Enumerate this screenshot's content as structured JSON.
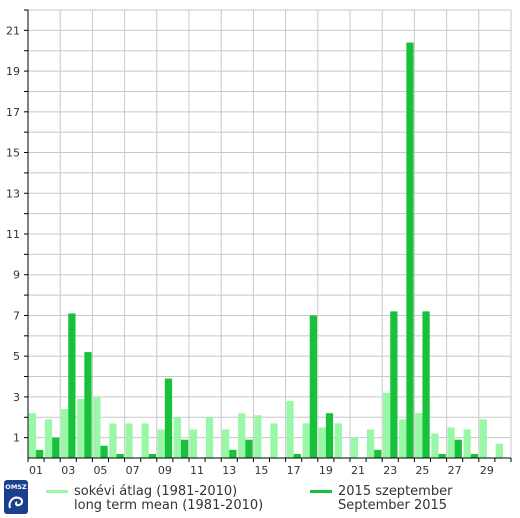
{
  "logo": {
    "text": "OMSZ",
    "color": "#1a3f8f"
  },
  "legend": {
    "mean": {
      "line1": "sokévi átlag (1981-2010)",
      "line2": "long term mean (1981-2010)",
      "color": "#99f7a8"
    },
    "current": {
      "line1": "2015 szeptember",
      "line2": "September 2015",
      "color": "#19c03a"
    }
  },
  "chart_data": {
    "type": "bar",
    "ylim": [
      0,
      22
    ],
    "y_ticks": [
      1,
      3,
      5,
      7,
      9,
      11,
      13,
      15,
      17,
      19,
      21
    ],
    "x_tick_labels": [
      "01",
      "03",
      "05",
      "07",
      "09",
      "11",
      "13",
      "15",
      "17",
      "19",
      "21",
      "23",
      "25",
      "27",
      "29"
    ],
    "days": [
      1,
      2,
      3,
      4,
      5,
      6,
      7,
      8,
      9,
      10,
      11,
      12,
      13,
      14,
      15,
      16,
      17,
      18,
      19,
      20,
      21,
      22,
      23,
      24,
      25,
      26,
      27,
      28,
      29,
      30
    ],
    "series": [
      {
        "name": "sokévi átlag (1981-2010)",
        "color": "#99f7a8",
        "values": [
          2.2,
          1.9,
          2.4,
          2.9,
          3.0,
          1.7,
          1.7,
          1.7,
          1.4,
          2.0,
          1.4,
          2.0,
          1.4,
          2.2,
          2.1,
          1.7,
          2.8,
          1.7,
          1.5,
          1.7,
          1.0,
          1.4,
          3.2,
          1.9,
          2.2,
          1.2,
          1.5,
          1.4,
          1.9,
          0.7
        ]
      },
      {
        "name": "2015 szeptember",
        "color": "#19c03a",
        "values": [
          0.4,
          1.0,
          7.1,
          5.2,
          0.6,
          0.2,
          0.0,
          0.2,
          3.9,
          0.9,
          0.0,
          0.0,
          0.4,
          0.9,
          0.0,
          0.0,
          0.2,
          7.0,
          2.2,
          0.0,
          0.0,
          0.4,
          7.2,
          20.4,
          7.2,
          0.2,
          0.9,
          0.2,
          0.0,
          0.0
        ]
      }
    ]
  }
}
